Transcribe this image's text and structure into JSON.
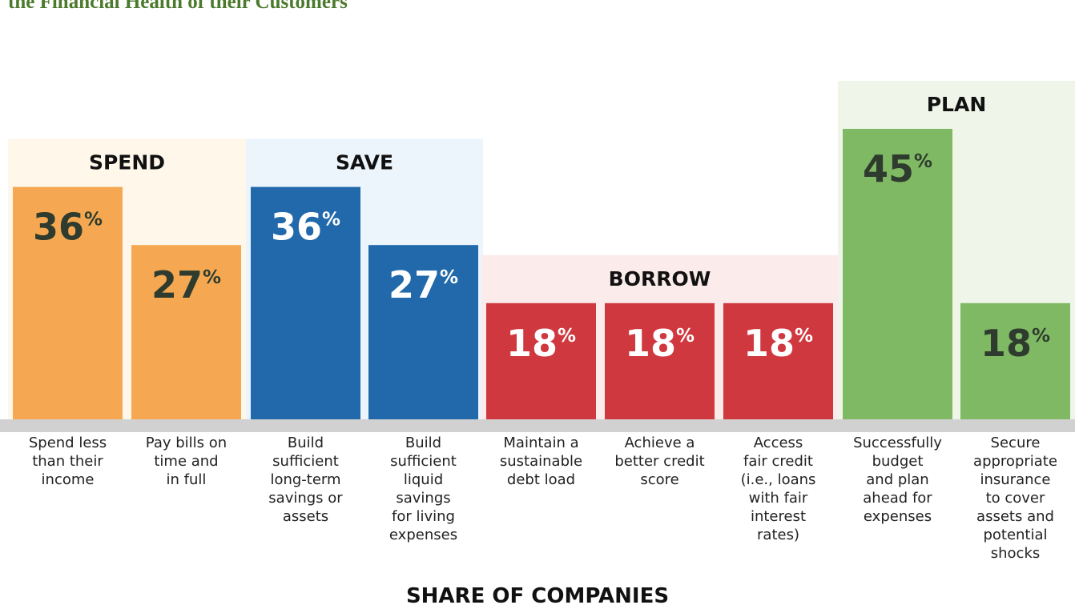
{
  "chart_data": {
    "type": "bar",
    "title": "the Financial Health of their Customers",
    "xlabel": "SHARE OF COMPANIES",
    "value_suffix": "%",
    "ylim": [
      0,
      45
    ],
    "groups": [
      {
        "name": "SPEND",
        "color": "#f5a851",
        "bg": "#fef7ea",
        "text_color": "#2e3b2e",
        "items": [
          {
            "label": "Spend less\nthan their\nincome",
            "value": 36
          },
          {
            "label": "Pay bills on\ntime and\nin full",
            "value": 27
          }
        ]
      },
      {
        "name": "SAVE",
        "color": "#2169aa",
        "bg": "#ecf4fc",
        "text_color": "#ffffff",
        "items": [
          {
            "label": "Build\nsufficient\nlong-term\nsavings or\nassets",
            "value": 36
          },
          {
            "label": "Build\nsufficient\nliquid\nsavings\nfor living\nexpenses",
            "value": 27
          }
        ]
      },
      {
        "name": "BORROW",
        "color": "#d0383f",
        "bg": "#fbebea",
        "text_color": "#ffffff",
        "items": [
          {
            "label": "Maintain a\nsustainable\ndebt load",
            "value": 18
          },
          {
            "label": "Achieve a\nbetter credit\nscore",
            "value": 18
          },
          {
            "label": "Access\nfair credit\n(i.e., loans\nwith fair\ninterest\nrates)",
            "value": 18
          }
        ]
      },
      {
        "name": "PLAN",
        "color": "#80b964",
        "bg": "#eff5e9",
        "text_color": "#2e3b2e",
        "items": [
          {
            "label": "Successfully\nbudget\nand plan\nahead for\nexpenses",
            "value": 45
          },
          {
            "label": "Secure\nappropriate\ninsurance\nto cover\nassets and\npotential\nshocks",
            "value": 18
          }
        ]
      }
    ]
  }
}
